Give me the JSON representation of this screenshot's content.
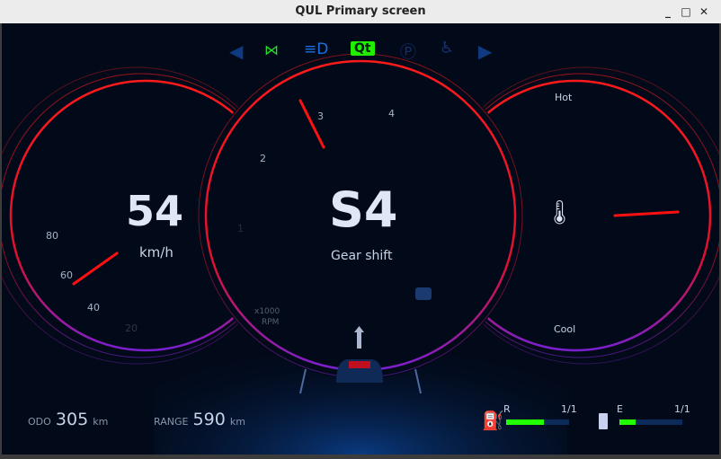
{
  "window": {
    "title": "QUL Primary screen"
  },
  "telltales": {
    "turn_left": "arrow-left-icon",
    "fog": "fog-light-icon",
    "headlight": "headlight-icon",
    "logo": "Qt",
    "parking": "parking-brake-icon",
    "airbag": "airbag-icon",
    "turn_right": "arrow-right-icon"
  },
  "speed": {
    "value": "54",
    "unit": "km/h",
    "ticks": [
      "80",
      "60",
      "40",
      "20"
    ]
  },
  "gear": {
    "value": "S4",
    "label": "Gear shift",
    "rpm_ticks": [
      "1",
      "2",
      "3",
      "4"
    ],
    "rpm_unit1": "x1000",
    "rpm_unit2": "RPM"
  },
  "temp": {
    "hot": "Hot",
    "cool": "Cool"
  },
  "odo": {
    "label": "ODO",
    "value": "305",
    "unit": "km"
  },
  "range": {
    "label": "RANGE",
    "value": "590",
    "unit": "km"
  },
  "fuel": {
    "label": "R",
    "value": "1/1",
    "level": 0.6
  },
  "battery": {
    "label": "E",
    "value": "1/1",
    "level": 0.25
  },
  "colors": {
    "accent": "#ff1010",
    "green": "#22ff00",
    "bar_bg": "#0c2a5a"
  }
}
